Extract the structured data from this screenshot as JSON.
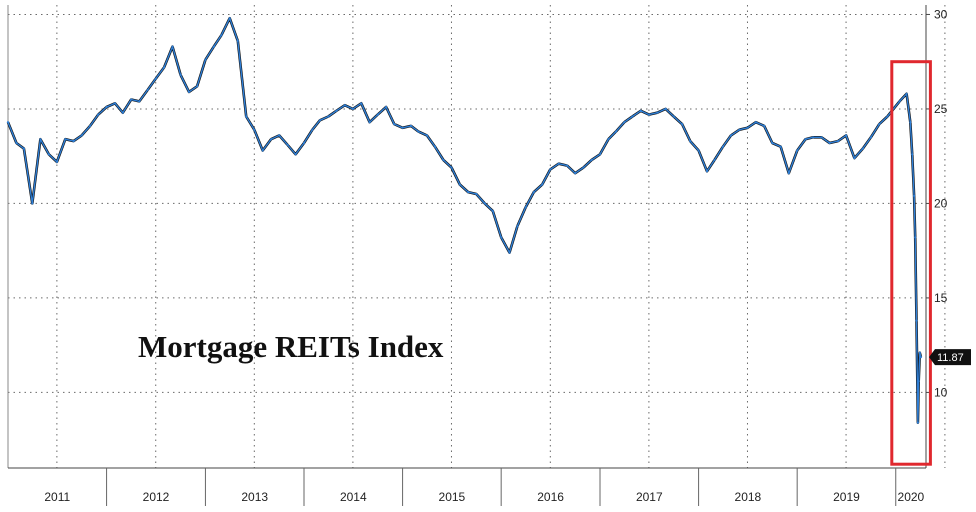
{
  "chart_data": {
    "type": "line",
    "title": "Mortgage REITs Index",
    "xlabel": "",
    "ylabel": "",
    "ylim": [
      6,
      30.5
    ],
    "y_ticks": [
      10,
      15,
      20,
      25,
      30
    ],
    "x_ticks": [
      "2011",
      "2012",
      "2013",
      "2014",
      "2015",
      "2016",
      "2017",
      "2018",
      "2019",
      "2020"
    ],
    "grid": true,
    "y_axis_side": "right",
    "last_value_label": "11.87",
    "highlight_box": {
      "from": "2020-01",
      "to": "2020-04",
      "color": "#e0282e"
    },
    "series": [
      {
        "color": "#2f7fd6",
        "points": [
          [
            "2011-01-01",
            24.3
          ],
          [
            "2011-02-01",
            23.2
          ],
          [
            "2011-03-01",
            22.9
          ],
          [
            "2011-04-01",
            20.0
          ],
          [
            "2011-05-01",
            23.4
          ],
          [
            "2011-06-01",
            22.6
          ],
          [
            "2011-07-01",
            22.2
          ],
          [
            "2011-08-01",
            23.4
          ],
          [
            "2011-09-01",
            23.3
          ],
          [
            "2011-10-01",
            23.6
          ],
          [
            "2011-11-01",
            24.1
          ],
          [
            "2011-12-01",
            24.7
          ],
          [
            "2012-01-01",
            25.1
          ],
          [
            "2012-02-01",
            25.3
          ],
          [
            "2012-03-01",
            24.8
          ],
          [
            "2012-04-01",
            25.5
          ],
          [
            "2012-05-01",
            25.4
          ],
          [
            "2012-06-01",
            26.0
          ],
          [
            "2012-07-01",
            26.6
          ],
          [
            "2012-08-01",
            27.2
          ],
          [
            "2012-09-01",
            28.3
          ],
          [
            "2012-10-01",
            26.8
          ],
          [
            "2012-11-01",
            25.9
          ],
          [
            "2012-12-01",
            26.2
          ],
          [
            "2013-01-01",
            27.6
          ],
          [
            "2013-02-01",
            28.3
          ],
          [
            "2013-03-01",
            28.9
          ],
          [
            "2013-04-01",
            29.8
          ],
          [
            "2013-05-01",
            28.6
          ],
          [
            "2013-06-01",
            24.6
          ],
          [
            "2013-07-01",
            23.9
          ],
          [
            "2013-08-01",
            22.8
          ],
          [
            "2013-09-01",
            23.4
          ],
          [
            "2013-10-01",
            23.6
          ],
          [
            "2013-11-01",
            23.1
          ],
          [
            "2013-12-01",
            22.6
          ],
          [
            "2014-01-01",
            23.2
          ],
          [
            "2014-02-01",
            23.9
          ],
          [
            "2014-03-01",
            24.4
          ],
          [
            "2014-04-01",
            24.6
          ],
          [
            "2014-05-01",
            24.9
          ],
          [
            "2014-06-01",
            25.2
          ],
          [
            "2014-07-01",
            25.0
          ],
          [
            "2014-08-01",
            25.3
          ],
          [
            "2014-09-01",
            24.3
          ],
          [
            "2014-10-01",
            24.7
          ],
          [
            "2014-11-01",
            25.1
          ],
          [
            "2014-12-01",
            24.2
          ],
          [
            "2015-01-01",
            24.0
          ],
          [
            "2015-02-01",
            24.1
          ],
          [
            "2015-03-01",
            23.8
          ],
          [
            "2015-04-01",
            23.6
          ],
          [
            "2015-05-01",
            23.0
          ],
          [
            "2015-06-01",
            22.3
          ],
          [
            "2015-07-01",
            21.9
          ],
          [
            "2015-08-01",
            21.0
          ],
          [
            "2015-09-01",
            20.6
          ],
          [
            "2015-10-01",
            20.5
          ],
          [
            "2015-11-01",
            20.0
          ],
          [
            "2015-12-01",
            19.6
          ],
          [
            "2016-01-01",
            18.2
          ],
          [
            "2016-02-01",
            17.4
          ],
          [
            "2016-03-01",
            18.8
          ],
          [
            "2016-04-01",
            19.8
          ],
          [
            "2016-05-01",
            20.6
          ],
          [
            "2016-06-01",
            21.0
          ],
          [
            "2016-07-01",
            21.8
          ],
          [
            "2016-08-01",
            22.1
          ],
          [
            "2016-09-01",
            22.0
          ],
          [
            "2016-10-01",
            21.6
          ],
          [
            "2016-11-01",
            21.9
          ],
          [
            "2016-12-01",
            22.3
          ],
          [
            "2017-01-01",
            22.6
          ],
          [
            "2017-02-01",
            23.4
          ],
          [
            "2017-03-01",
            23.8
          ],
          [
            "2017-04-01",
            24.3
          ],
          [
            "2017-05-01",
            24.6
          ],
          [
            "2017-06-01",
            24.9
          ],
          [
            "2017-07-01",
            24.7
          ],
          [
            "2017-08-01",
            24.8
          ],
          [
            "2017-09-01",
            25.0
          ],
          [
            "2017-10-01",
            24.6
          ],
          [
            "2017-11-01",
            24.2
          ],
          [
            "2017-12-01",
            23.3
          ],
          [
            "2018-01-01",
            22.8
          ],
          [
            "2018-02-01",
            21.7
          ],
          [
            "2018-03-01",
            22.3
          ],
          [
            "2018-04-01",
            23.0
          ],
          [
            "2018-05-01",
            23.6
          ],
          [
            "2018-06-01",
            23.9
          ],
          [
            "2018-07-01",
            24.0
          ],
          [
            "2018-08-01",
            24.3
          ],
          [
            "2018-09-01",
            24.1
          ],
          [
            "2018-10-01",
            23.2
          ],
          [
            "2018-11-01",
            23.0
          ],
          [
            "2018-12-01",
            21.6
          ],
          [
            "2019-01-01",
            22.8
          ],
          [
            "2019-02-01",
            23.4
          ],
          [
            "2019-03-01",
            23.5
          ],
          [
            "2019-04-01",
            23.5
          ],
          [
            "2019-05-01",
            23.2
          ],
          [
            "2019-06-01",
            23.3
          ],
          [
            "2019-07-01",
            23.6
          ],
          [
            "2019-08-01",
            22.4
          ],
          [
            "2019-09-01",
            22.9
          ],
          [
            "2019-10-01",
            23.5
          ],
          [
            "2019-11-01",
            24.2
          ],
          [
            "2019-12-01",
            24.6
          ],
          [
            "2020-01-15",
            25.4
          ],
          [
            "2020-02-10",
            25.8
          ],
          [
            "2020-02-24",
            24.3
          ],
          [
            "2020-03-02",
            22.6
          ],
          [
            "2020-03-09",
            20.4
          ],
          [
            "2020-03-13",
            18.2
          ],
          [
            "2020-03-18",
            13.8
          ],
          [
            "2020-03-23",
            8.4
          ],
          [
            "2020-03-26",
            10.6
          ],
          [
            "2020-03-30",
            12.1
          ],
          [
            "2020-04-03",
            11.87
          ]
        ]
      }
    ]
  }
}
